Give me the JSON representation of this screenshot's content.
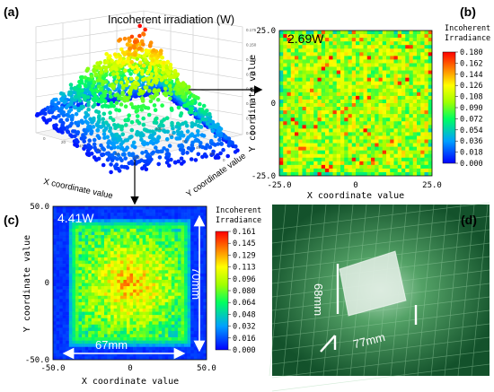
{
  "panel_labels": {
    "a": "(a)",
    "b": "(b)",
    "c": "(c)",
    "d": "(d)"
  },
  "chart_data": [
    {
      "id": "a",
      "type": "scatter",
      "title": "Incoherent irradiation (W)",
      "xlabel": "X coordinate value",
      "ylabel": "Y coordinate value",
      "z_ticks": [
        "0.000",
        "0.025",
        "0.050",
        "0.075",
        "0.100",
        "0.125",
        "0.150",
        "0.175"
      ],
      "x_ticks": [
        "0",
        "20",
        "40",
        "60",
        "80",
        "100"
      ],
      "y_ticks": [
        "0",
        "20",
        "40",
        "60",
        "80",
        "100"
      ],
      "zlim": [
        0,
        0.175
      ]
    },
    {
      "id": "b",
      "type": "heatmap",
      "annotation": "2.69W",
      "xlabel": "X coordinate value",
      "ylabel": "Y coordinate value",
      "x_ticks": [
        "-25.0",
        "0",
        "25.0"
      ],
      "y_ticks": [
        "25.0",
        "0",
        "-25.0"
      ],
      "xlim": [
        -25,
        25
      ],
      "ylim": [
        -25,
        25
      ],
      "colorbar_title": [
        "Incoherent",
        "Irradiance"
      ],
      "colorbar_ticks": [
        "0.180",
        "0.162",
        "0.144",
        "0.126",
        "0.108",
        "0.090",
        "0.072",
        "0.054",
        "0.036",
        "0.018",
        "0.000"
      ],
      "vmin": 0,
      "vmax": 0.18
    },
    {
      "id": "c",
      "type": "heatmap",
      "annotation": "4.41W",
      "xlabel": "X coordinate value",
      "ylabel": "Y coordinate value",
      "x_ticks": [
        "-50.0",
        "0",
        "50.0"
      ],
      "y_ticks": [
        "50.0",
        "0",
        "-50.0"
      ],
      "xlim": [
        -50,
        50
      ],
      "ylim": [
        -50,
        50
      ],
      "colorbar_title": [
        "Incoherent",
        "Irradiance"
      ],
      "colorbar_ticks": [
        "0.161",
        "0.145",
        "0.129",
        "0.113",
        "0.096",
        "0.080",
        "0.064",
        "0.048",
        "0.032",
        "0.016",
        "0.000"
      ],
      "vmin": 0,
      "vmax": 0.161,
      "dimension_labels": {
        "width": "67mm",
        "height": "70mm"
      }
    }
  ],
  "photo": {
    "width_label": "77mm",
    "height_label": "68mm"
  },
  "colors": {
    "background": "#ffffff",
    "photo_green": "#1f6b38",
    "heatmap_outer": "#2040d0"
  }
}
